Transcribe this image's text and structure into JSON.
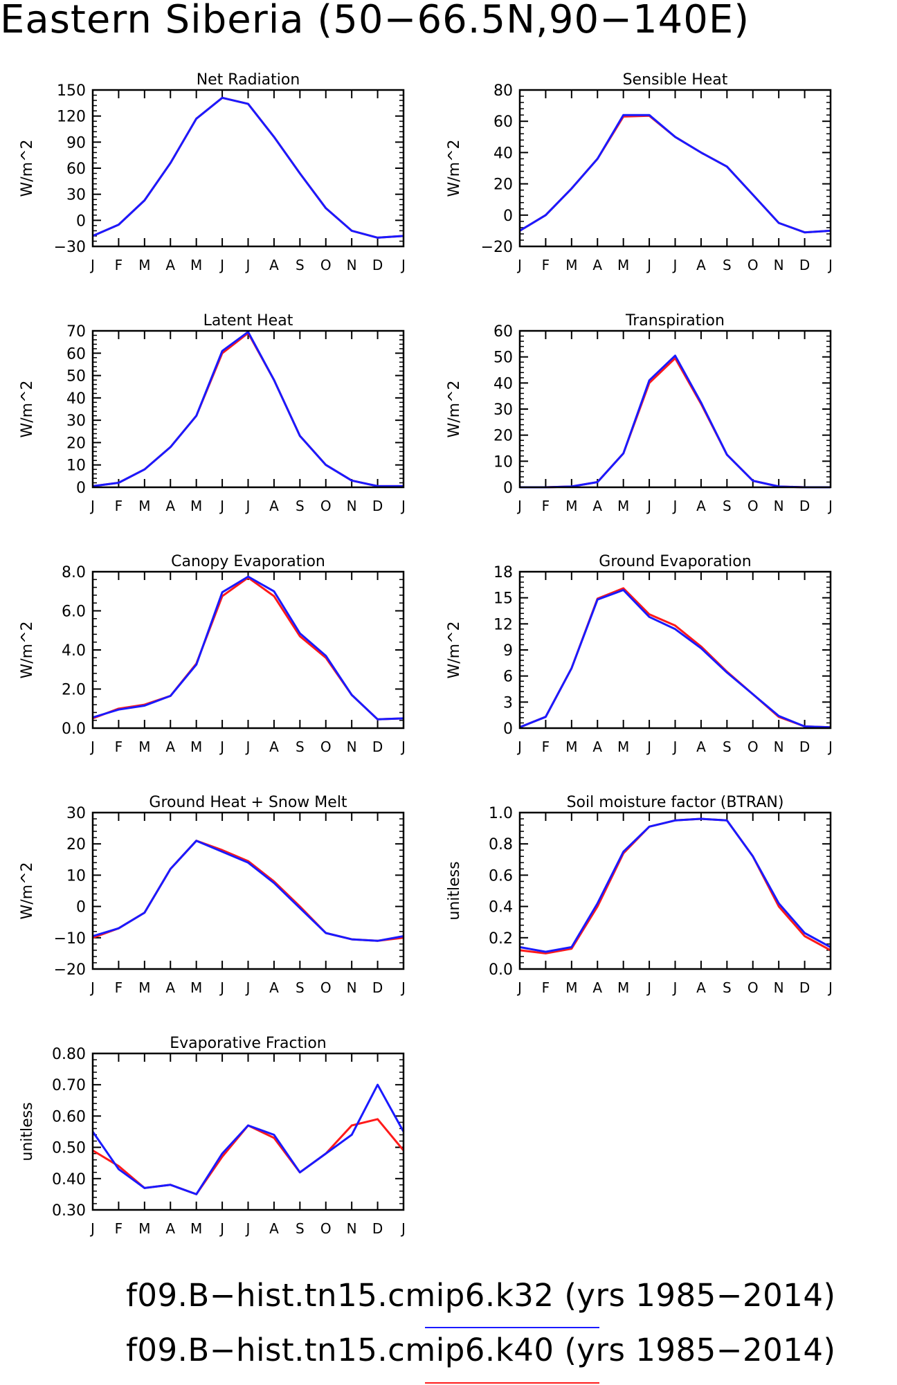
{
  "title": "Eastern Siberia (50−66.5N,90−140E)",
  "colors": {
    "k32": "#1a1aff",
    "k40": "#ff1a1a"
  },
  "legend": [
    {
      "text": "f09.B−hist.tn15.cmip6.k32 (yrs 1985−2014)",
      "color": "#1a1aff"
    },
    {
      "text": "f09.B−hist.tn15.cmip6.k40 (yrs 1985−2014)",
      "color": "#ff1a1a"
    }
  ],
  "chart_data": [
    {
      "type": "line",
      "title": "Net Radiation",
      "ylabel": "W/m^2",
      "categories": [
        "J",
        "F",
        "M",
        "A",
        "M",
        "J",
        "J",
        "A",
        "S",
        "O",
        "N",
        "D",
        "J"
      ],
      "ylim": [
        -30,
        150
      ],
      "yticks": [
        -30,
        0,
        30,
        60,
        90,
        120,
        150
      ],
      "yticklabels": [
        "−30",
        "0",
        "30",
        "60",
        "90",
        "120",
        "150"
      ],
      "series": [
        {
          "name": "f09.B−hist.tn15.cmip6.k40",
          "color": "#ff1a1a",
          "values": [
            -18,
            -5,
            23,
            66,
            117,
            141,
            134,
            96,
            54,
            14,
            -12,
            -20,
            -18
          ]
        },
        {
          "name": "f09.B−hist.tn15.cmip6.k32",
          "color": "#1a1aff",
          "values": [
            -18,
            -5,
            23,
            66,
            117,
            141,
            134,
            96,
            54,
            14,
            -12,
            -20,
            -18
          ]
        }
      ]
    },
    {
      "type": "line",
      "title": "Sensible Heat",
      "ylabel": "W/m^2",
      "categories": [
        "J",
        "F",
        "M",
        "A",
        "M",
        "J",
        "J",
        "A",
        "S",
        "O",
        "N",
        "D",
        "J"
      ],
      "ylim": [
        -20,
        80
      ],
      "yticks": [
        -20,
        0,
        20,
        40,
        60,
        80
      ],
      "yticklabels": [
        "−20",
        "0",
        "20",
        "40",
        "60",
        "80"
      ],
      "series": [
        {
          "name": "f09.B−hist.tn15.cmip6.k40",
          "color": "#ff1a1a",
          "values": [
            -10,
            0,
            17,
            36,
            63,
            63.5,
            50,
            40,
            31,
            13,
            -5,
            -11,
            -10
          ]
        },
        {
          "name": "f09.B−hist.tn15.cmip6.k32",
          "color": "#1a1aff",
          "values": [
            -10,
            0,
            17,
            36,
            64,
            64,
            50,
            40,
            31,
            13,
            -5,
            -11,
            -10
          ]
        }
      ]
    },
    {
      "type": "line",
      "title": "Latent Heat",
      "ylabel": "W/m^2",
      "categories": [
        "J",
        "F",
        "M",
        "A",
        "M",
        "J",
        "J",
        "A",
        "S",
        "O",
        "N",
        "D",
        "J"
      ],
      "ylim": [
        0,
        70
      ],
      "yticks": [
        0,
        10,
        20,
        30,
        40,
        50,
        60,
        70
      ],
      "yticklabels": [
        "0",
        "10",
        "20",
        "30",
        "40",
        "50",
        "60",
        "70"
      ],
      "series": [
        {
          "name": "f09.B−hist.tn15.cmip6.k40",
          "color": "#ff1a1a",
          "values": [
            0.5,
            2,
            8,
            18,
            32,
            60,
            69,
            48,
            23,
            10,
            3,
            0.5,
            0.5
          ]
        },
        {
          "name": "f09.B−hist.tn15.cmip6.k32",
          "color": "#1a1aff",
          "values": [
            0.5,
            2,
            8,
            18,
            32,
            61,
            69.5,
            48,
            23,
            10,
            3,
            0.5,
            0.5
          ]
        }
      ]
    },
    {
      "type": "line",
      "title": "Transpiration",
      "ylabel": "W/m^2",
      "categories": [
        "J",
        "F",
        "M",
        "A",
        "M",
        "J",
        "J",
        "A",
        "S",
        "O",
        "N",
        "D",
        "J"
      ],
      "ylim": [
        0,
        60
      ],
      "yticks": [
        0,
        10,
        20,
        30,
        40,
        50,
        60
      ],
      "yticklabels": [
        "0",
        "10",
        "20",
        "30",
        "40",
        "50",
        "60"
      ],
      "series": [
        {
          "name": "f09.B−hist.tn15.cmip6.k40",
          "color": "#ff1a1a",
          "values": [
            0,
            0,
            0.3,
            2,
            13,
            40,
            49.5,
            32,
            12.5,
            2.5,
            0.3,
            0,
            0
          ]
        },
        {
          "name": "f09.B−hist.tn15.cmip6.k32",
          "color": "#1a1aff",
          "values": [
            0,
            0,
            0.3,
            2,
            13,
            41,
            50.5,
            32.5,
            12.5,
            2.5,
            0.3,
            0,
            0
          ]
        }
      ]
    },
    {
      "type": "line",
      "title": "Canopy Evaporation",
      "ylabel": "W/m^2",
      "categories": [
        "J",
        "F",
        "M",
        "A",
        "M",
        "J",
        "J",
        "A",
        "S",
        "O",
        "N",
        "D",
        "J"
      ],
      "ylim": [
        0,
        8
      ],
      "yticks": [
        0,
        2,
        4,
        6,
        8
      ],
      "yticklabels": [
        "0.0",
        "2.0",
        "4.0",
        "6.0",
        "8.0"
      ],
      "series": [
        {
          "name": "f09.B−hist.tn15.cmip6.k40",
          "color": "#ff1a1a",
          "values": [
            0.5,
            1.0,
            1.2,
            1.65,
            3.3,
            6.75,
            7.7,
            6.75,
            4.7,
            3.6,
            1.7,
            0.45,
            0.5
          ]
        },
        {
          "name": "f09.B−hist.tn15.cmip6.k32",
          "color": "#1a1aff",
          "values": [
            0.55,
            0.95,
            1.15,
            1.65,
            3.25,
            6.95,
            7.75,
            7.0,
            4.85,
            3.7,
            1.7,
            0.45,
            0.5
          ]
        }
      ]
    },
    {
      "type": "line",
      "title": "Ground Evaporation",
      "ylabel": "W/m^2",
      "categories": [
        "J",
        "F",
        "M",
        "A",
        "M",
        "J",
        "J",
        "A",
        "S",
        "O",
        "N",
        "D",
        "J"
      ],
      "ylim": [
        0,
        18
      ],
      "yticks": [
        0,
        3,
        6,
        9,
        12,
        15,
        18
      ],
      "yticklabels": [
        "0",
        "3",
        "6",
        "9",
        "12",
        "15",
        "18"
      ],
      "series": [
        {
          "name": "f09.B−hist.tn15.cmip6.k40",
          "color": "#ff1a1a",
          "values": [
            0.1,
            1.3,
            6.9,
            14.9,
            16.1,
            13.1,
            11.8,
            9.4,
            6.5,
            3.9,
            1.3,
            0.2,
            0.1
          ]
        },
        {
          "name": "f09.B−hist.tn15.cmip6.k32",
          "color": "#1a1aff",
          "values": [
            0.1,
            1.3,
            6.9,
            14.8,
            15.9,
            12.8,
            11.4,
            9.2,
            6.4,
            3.9,
            1.4,
            0.2,
            0.1
          ]
        }
      ]
    },
    {
      "type": "line",
      "title": "Ground Heat + Snow Melt",
      "ylabel": "W/m^2",
      "categories": [
        "J",
        "F",
        "M",
        "A",
        "M",
        "J",
        "J",
        "A",
        "S",
        "O",
        "N",
        "D",
        "J"
      ],
      "ylim": [
        -20,
        30
      ],
      "yticks": [
        -20,
        -10,
        0,
        10,
        20,
        30
      ],
      "yticklabels": [
        "−20",
        "−10",
        "0",
        "10",
        "20",
        "30"
      ],
      "series": [
        {
          "name": "f09.B−hist.tn15.cmip6.k40",
          "color": "#ff1a1a",
          "values": [
            -10,
            -7,
            -2,
            12,
            21,
            18,
            14.5,
            8,
            0,
            -8.5,
            -10.5,
            -11,
            -10
          ]
        },
        {
          "name": "f09.B−hist.tn15.cmip6.k32",
          "color": "#1a1aff",
          "values": [
            -9.5,
            -7,
            -2,
            12,
            21,
            17.5,
            14,
            7.5,
            -0.5,
            -8.5,
            -10.5,
            -11,
            -9.5
          ]
        }
      ]
    },
    {
      "type": "line",
      "title": "Soil moisture factor (BTRAN)",
      "ylabel": "unitless",
      "categories": [
        "J",
        "F",
        "M",
        "A",
        "M",
        "J",
        "J",
        "A",
        "S",
        "O",
        "N",
        "D",
        "J"
      ],
      "ylim": [
        0,
        1
      ],
      "yticks": [
        0,
        0.2,
        0.4,
        0.6,
        0.8,
        1.0
      ],
      "yticklabels": [
        "0.0",
        "0.2",
        "0.4",
        "0.6",
        "0.8",
        "1.0"
      ],
      "series": [
        {
          "name": "f09.B−hist.tn15.cmip6.k40",
          "color": "#ff1a1a",
          "values": [
            0.12,
            0.1,
            0.13,
            0.4,
            0.74,
            0.91,
            0.95,
            0.96,
            0.95,
            0.72,
            0.4,
            0.21,
            0.12
          ]
        },
        {
          "name": "f09.B−hist.tn15.cmip6.k32",
          "color": "#1a1aff",
          "values": [
            0.14,
            0.11,
            0.14,
            0.42,
            0.75,
            0.91,
            0.95,
            0.96,
            0.95,
            0.72,
            0.42,
            0.23,
            0.14
          ]
        }
      ]
    },
    {
      "type": "line",
      "title": "Evaporative Fraction",
      "ylabel": "unitless",
      "categories": [
        "J",
        "F",
        "M",
        "A",
        "M",
        "J",
        "J",
        "A",
        "S",
        "O",
        "N",
        "D",
        "J"
      ],
      "ylim": [
        0.3,
        0.8
      ],
      "yticks": [
        0.3,
        0.4,
        0.5,
        0.6,
        0.7,
        0.8
      ],
      "yticklabels": [
        "0.30",
        "0.40",
        "0.50",
        "0.60",
        "0.70",
        "0.80"
      ],
      "series": [
        {
          "name": "f09.B−hist.tn15.cmip6.k40",
          "color": "#ff1a1a",
          "values": [
            0.49,
            0.44,
            0.37,
            0.38,
            0.35,
            0.47,
            0.57,
            0.53,
            0.42,
            0.48,
            0.57,
            0.59,
            0.49
          ]
        },
        {
          "name": "f09.B−hist.tn15.cmip6.k32",
          "color": "#1a1aff",
          "values": [
            0.55,
            0.43,
            0.37,
            0.38,
            0.35,
            0.48,
            0.57,
            0.54,
            0.42,
            0.48,
            0.54,
            0.7,
            0.55
          ]
        }
      ]
    }
  ]
}
